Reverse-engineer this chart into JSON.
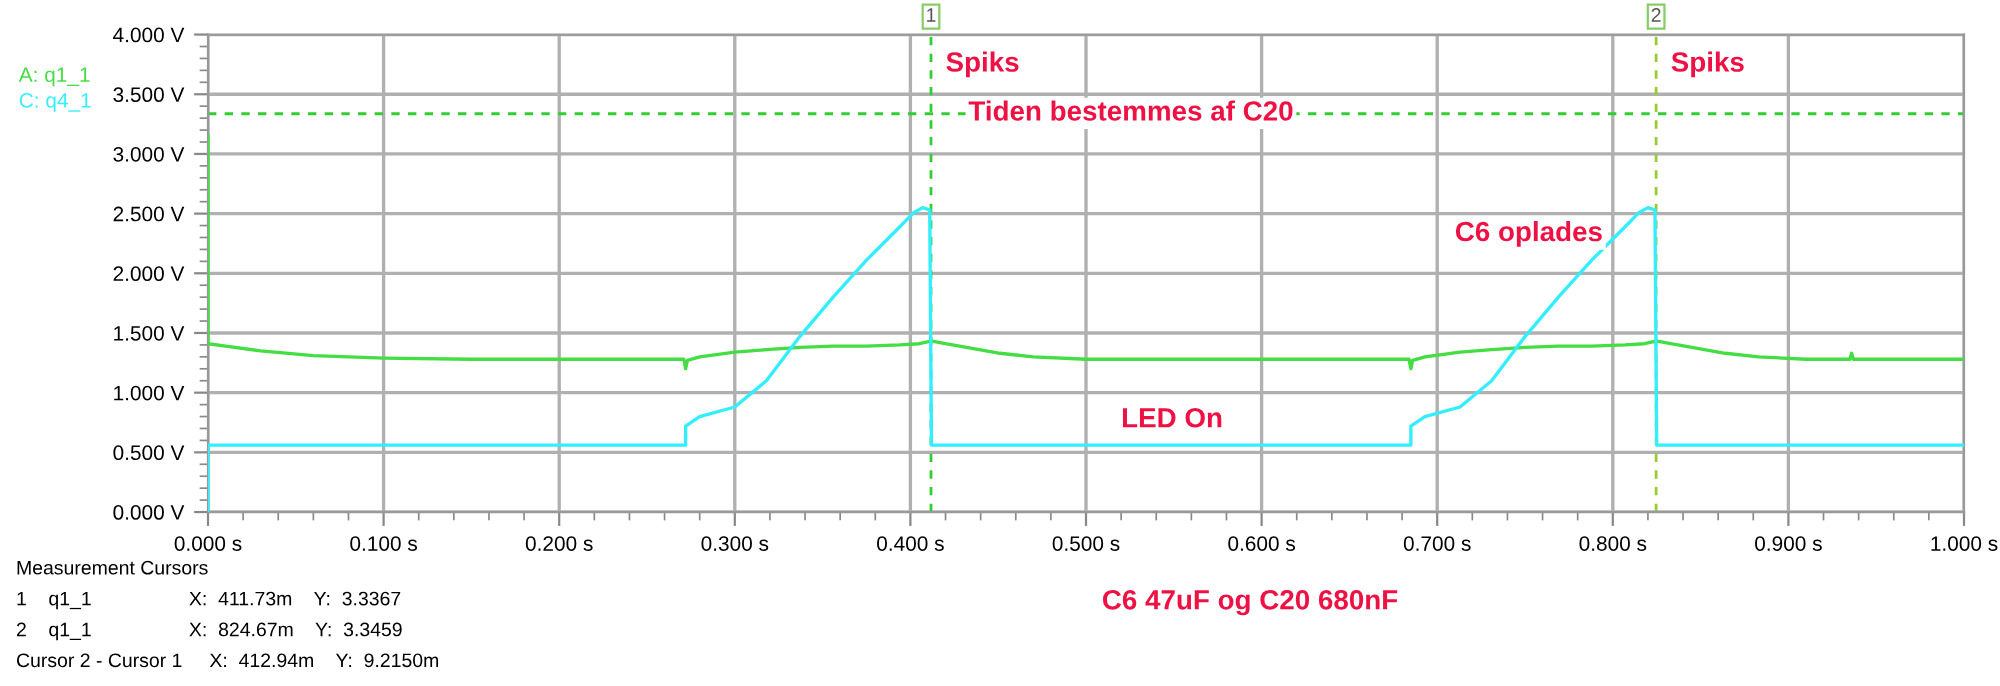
{
  "chart_data": {
    "type": "line",
    "x": [
      0,
      0,
      0.01,
      0.03,
      0.06,
      0.1,
      0.15,
      0.271,
      0.272,
      0.273,
      0.28,
      0.3,
      0.318,
      0.337,
      0.356,
      0.375,
      0.394,
      0.405,
      0.411,
      0.413,
      0.42,
      0.432,
      0.451,
      0.47,
      0.5,
      0.684,
      0.685,
      0.686,
      0.693,
      0.713,
      0.731,
      0.75,
      0.769,
      0.788,
      0.807,
      0.818,
      0.824,
      0.826,
      0.833,
      0.845,
      0.864,
      0.883,
      0.91,
      0.935,
      0.936,
      0.937,
      1.0
    ],
    "series": [
      {
        "name": "A: q1_1",
        "color": "#44dd44",
        "values": [
          3.15,
          1.41,
          1.39,
          1.35,
          1.31,
          1.29,
          1.28,
          1.28,
          1.2,
          1.27,
          1.3,
          1.34,
          1.36,
          1.38,
          1.39,
          1.39,
          1.4,
          1.41,
          1.43,
          1.43,
          1.41,
          1.38,
          1.33,
          1.3,
          1.28,
          1.28,
          1.2,
          1.27,
          1.3,
          1.34,
          1.36,
          1.38,
          1.39,
          1.39,
          1.4,
          1.41,
          1.43,
          1.43,
          1.41,
          1.38,
          1.33,
          1.3,
          1.28,
          1.28,
          1.33,
          1.28,
          1.28
        ]
      },
      {
        "name": "C: q4_1",
        "color": "#33eeff",
        "x": [
          0,
          0,
          0.272,
          0.272,
          0.28,
          0.3,
          0.318,
          0.337,
          0.356,
          0.375,
          0.394,
          0.402,
          0.407,
          0.411,
          0.412,
          0.685,
          0.685,
          0.693,
          0.713,
          0.731,
          0.75,
          0.769,
          0.788,
          0.807,
          0.815,
          0.82,
          0.824,
          0.825,
          1.0
        ],
        "values": [
          0,
          0.56,
          0.56,
          0.72,
          0.8,
          0.88,
          1.1,
          1.47,
          1.8,
          2.11,
          2.39,
          2.51,
          2.55,
          2.53,
          0.56,
          0.56,
          0.72,
          0.8,
          0.88,
          1.1,
          1.47,
          1.8,
          2.11,
          2.39,
          2.51,
          2.55,
          2.53,
          0.56,
          0.56
        ]
      }
    ],
    "xlim": [
      0,
      1
    ],
    "xticks": [
      {
        "value": 0,
        "label": "0.000 s"
      },
      {
        "value": 0.1,
        "label": "0.100 s"
      },
      {
        "value": 0.2,
        "label": "0.200 s"
      },
      {
        "value": 0.3,
        "label": "0.300 s"
      },
      {
        "value": 0.4,
        "label": "0.400 s"
      },
      {
        "value": 0.5,
        "label": "0.500 s"
      },
      {
        "value": 0.6,
        "label": "0.600 s"
      },
      {
        "value": 0.7,
        "label": "0.700 s"
      },
      {
        "value": 0.8,
        "label": "0.800 s"
      },
      {
        "value": 0.9,
        "label": "0.900 s"
      },
      {
        "value": 1.0,
        "label": "1.000 s"
      }
    ],
    "ylim": [
      0,
      4
    ],
    "yticks": [
      {
        "value": 0,
        "label": "0.000 V"
      },
      {
        "value": 0.5,
        "label": "0.500 V"
      },
      {
        "value": 1.0,
        "label": "1.000 V"
      },
      {
        "value": 1.5,
        "label": "1.500 V"
      },
      {
        "value": 2.0,
        "label": "2.000 V"
      },
      {
        "value": 2.5,
        "label": "2.500 V"
      },
      {
        "value": 3.0,
        "label": "3.000 V"
      },
      {
        "value": 3.5,
        "label": "3.500 V"
      },
      {
        "value": 4.0,
        "label": "4.000 V"
      }
    ],
    "grid": true,
    "legend": "top left",
    "line_style": "solid",
    "marker": "none",
    "ref_lines": [
      {
        "axis": "y",
        "value": 3.3367,
        "color": "#33cc33",
        "line_style": "dashed"
      },
      {
        "axis": "x",
        "value": 0.41173,
        "color": "#33cc33",
        "line_style": "dashed"
      },
      {
        "axis": "x",
        "value": 0.82467,
        "color": "#99cc33",
        "line_style": "dashed"
      }
    ],
    "annotations": [
      {
        "text": "1",
        "x": 0.41173,
        "y": 4.15
      },
      {
        "text": "2",
        "x": 0.82467,
        "y": 4.15
      },
      "Spiks",
      "Spiks",
      {
        "text": "Tiden bestemmes af C20",
        "x": 0.433,
        "y": 3.34
      },
      "C6 oplades",
      "LED On",
      "Measurement Cursors",
      "1    q1_1                  X:  411.73m    Y:  3.3367",
      "2    q1_1                  X:  824.67m    Y:  3.3459",
      "Cursor 2 - Cursor 1     X:  412.94m    Y:  9.2150m",
      "C6 47uF og C20 680nF"
    ]
  }
}
